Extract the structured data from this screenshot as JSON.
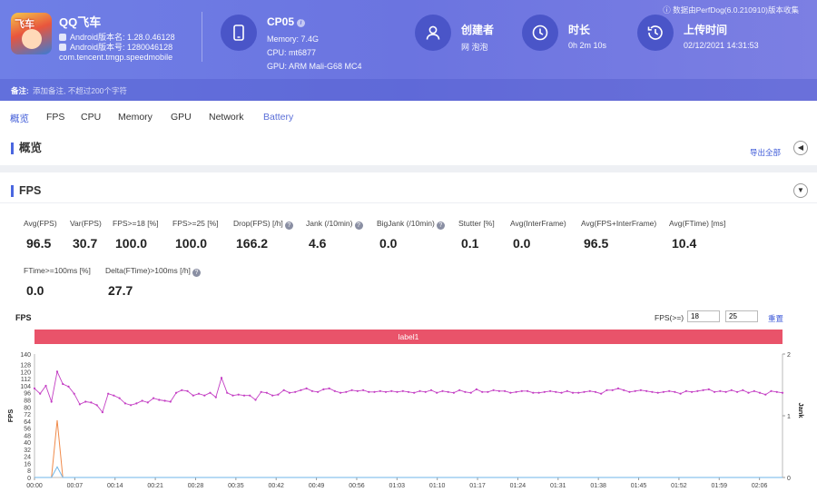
{
  "app": {
    "name": "QQ飞车",
    "version_line": "Android版本名: 1.28.0.46128",
    "code_line": "Android版本号: 1280046128",
    "package": "com.tencent.tmgp.speedmobile",
    "logo_text": "飞车"
  },
  "device": {
    "name": "CP05",
    "memory": "Memory: 7.4G",
    "cpu": "CPU: mt6877",
    "gpu": "GPU: ARM Mali-G68 MC4",
    "icon": "phone-icon"
  },
  "creator": {
    "title": "创建者",
    "value": "网 泡泡",
    "icon": "user-icon"
  },
  "duration": {
    "title": "时长",
    "value": "0h 2m 10s",
    "icon": "clock-icon"
  },
  "upload": {
    "title": "上传时间",
    "value": "02/12/2021 14:31:53",
    "icon": "history-icon"
  },
  "source_note": "数据由PerfDog(6.0.210910)版本收集",
  "remark": {
    "label": "备注:",
    "placeholder": "添加备注, 不超过200个字符"
  },
  "tabs": [
    "概览",
    "FPS",
    "CPU",
    "Memory",
    "GPU",
    "Network",
    "Battery"
  ],
  "overview": {
    "title": "概览",
    "export": "导出全部",
    "collapse_icon": "chevron-left-icon"
  },
  "fps_section": {
    "title": "FPS",
    "collapse_icon": "chevron-down-icon",
    "metrics_row1": [
      {
        "label": "Avg(FPS)",
        "value": "96.5",
        "help": false
      },
      {
        "label": "Var(FPS)",
        "value": "30.7",
        "help": false
      },
      {
        "label": "FPS>=18 [%]",
        "value": "100.0",
        "help": false
      },
      {
        "label": "FPS>=25 [%]",
        "value": "100.0",
        "help": false
      },
      {
        "label": "Drop(FPS) [/h]",
        "value": "166.2",
        "help": true
      },
      {
        "label": "Jank (/10min)",
        "value": "4.6",
        "help": true
      },
      {
        "label": "BigJank (/10min)",
        "value": "0.0",
        "help": true
      },
      {
        "label": "Stutter [%]",
        "value": "0.1",
        "help": false
      },
      {
        "label": "Avg(InterFrame)",
        "value": "0.0",
        "help": false
      },
      {
        "label": "Avg(FPS+InterFrame)",
        "value": "96.5",
        "help": false
      },
      {
        "label": "Avg(FTime) [ms]",
        "value": "10.4",
        "help": false
      }
    ],
    "metrics_row2": [
      {
        "label": "FTime>=100ms [%]",
        "value": "0.0",
        "help": false
      },
      {
        "label": "Delta(FTime)>100ms [/h]",
        "value": "27.7",
        "help": true
      }
    ],
    "chart_label": "FPS",
    "threshold_label": "FPS(>=)",
    "threshold_values": [
      "18",
      "25"
    ],
    "reset": "重置",
    "label_bar": "label1"
  },
  "chart_data": {
    "type": "line",
    "title": "",
    "ylabel": "FPS",
    "y2label": "Jank",
    "ylim": [
      0,
      140
    ],
    "y2lim": [
      0,
      2
    ],
    "yticks": [
      "0",
      "8",
      "16",
      "24",
      "32",
      "40",
      "48",
      "56",
      "64",
      "72",
      "80",
      "88",
      "96",
      "104",
      "112",
      "120",
      "128",
      "140"
    ],
    "y2ticks": [
      "0",
      "1",
      "2"
    ],
    "xticks": [
      "00:00",
      "00:07",
      "00:14",
      "00:21",
      "00:28",
      "00:35",
      "00:42",
      "00:49",
      "00:56",
      "01:03",
      "01:10",
      "01:17",
      "01:24",
      "01:31",
      "01:38",
      "01:45",
      "01:52",
      "01:59",
      "02:06"
    ],
    "duration_s": 130,
    "series": [
      {
        "color": "#c43fc4",
        "values": [
          101,
          95,
          104,
          86,
          120,
          106,
          103,
          95,
          83,
          86,
          85,
          82,
          74,
          95,
          93,
          90,
          84,
          82,
          84,
          87,
          85,
          90,
          88,
          87,
          86,
          96,
          99,
          98,
          93,
          95,
          93,
          96,
          91,
          113,
          96,
          93,
          94,
          93,
          93,
          88,
          97,
          96,
          93,
          94,
          99,
          96,
          97,
          99,
          101,
          98,
          97,
          100,
          101,
          98,
          96,
          97,
          99,
          98,
          99,
          97,
          97,
          98,
          97,
          98,
          97,
          98,
          97,
          96,
          98,
          97,
          99,
          96,
          98,
          97,
          96,
          99,
          97,
          96,
          100,
          97,
          97,
          99,
          98,
          98,
          96,
          97,
          98,
          98,
          96,
          96,
          97,
          98,
          97,
          96,
          98,
          96,
          96,
          97,
          98,
          97,
          95,
          99,
          99,
          101,
          99,
          97,
          98,
          99,
          98,
          97,
          96,
          97,
          98,
          97,
          95,
          98,
          97,
          98,
          99,
          100,
          97,
          98,
          97,
          99,
          97,
          99,
          96,
          98,
          96,
          94,
          98,
          97,
          96
        ]
      },
      {
        "color": "#f08a4a",
        "values": [
          0,
          0,
          0,
          0,
          65,
          0,
          0,
          0,
          0,
          0,
          0,
          0,
          0,
          0,
          0,
          0,
          0,
          0,
          0,
          0,
          0,
          0,
          0,
          0,
          0,
          0,
          0,
          0,
          0,
          0,
          0,
          0,
          0,
          0,
          0,
          0,
          0,
          0,
          0,
          0,
          0,
          0,
          0,
          0,
          0,
          0,
          0,
          0,
          0,
          0,
          0,
          0,
          0,
          0,
          0,
          0,
          0,
          0,
          0,
          0,
          0,
          0,
          0,
          0,
          0,
          0,
          0,
          0,
          0,
          0,
          0,
          0,
          0,
          0,
          0,
          0,
          0,
          0,
          0,
          0,
          0,
          0,
          0,
          0,
          0,
          0,
          0,
          0,
          0,
          0,
          0,
          0,
          0,
          0,
          0,
          0,
          0,
          0,
          0,
          0,
          0,
          0,
          0,
          0,
          0,
          0,
          0,
          0,
          0,
          0,
          0,
          0,
          0,
          0,
          0,
          0,
          0,
          0,
          0,
          0,
          0,
          0,
          0,
          0,
          0,
          0,
          0,
          0,
          0,
          0,
          0,
          0,
          0
        ]
      },
      {
        "color": "#6fb6e8",
        "values": [
          0,
          0,
          0,
          0,
          12,
          0,
          0,
          0,
          0,
          0,
          0,
          0,
          0,
          0,
          0,
          0,
          0,
          0,
          0,
          0,
          0,
          0,
          0,
          0,
          0,
          0,
          0,
          0,
          0,
          0,
          0,
          0,
          0,
          0,
          0,
          0,
          0,
          0,
          0,
          0,
          0,
          0,
          0,
          0,
          0,
          0,
          0,
          0,
          0,
          0,
          0,
          0,
          0,
          0,
          0,
          0,
          0,
          0,
          0,
          0,
          0,
          0,
          0,
          0,
          0,
          0,
          0,
          0,
          0,
          0,
          0,
          0,
          0,
          0,
          0,
          0,
          0,
          0,
          0,
          0,
          0,
          0,
          0,
          0,
          0,
          0,
          0,
          0,
          0,
          0,
          0,
          0,
          0,
          0,
          0,
          0,
          0,
          0,
          0,
          0,
          0,
          0,
          0,
          0,
          0,
          0,
          0,
          0,
          0,
          0,
          0,
          0,
          0,
          0,
          0,
          0,
          0,
          0,
          0,
          0,
          0,
          0,
          0,
          0,
          0,
          0,
          0,
          0,
          0,
          0,
          0,
          0,
          0
        ]
      }
    ]
  }
}
